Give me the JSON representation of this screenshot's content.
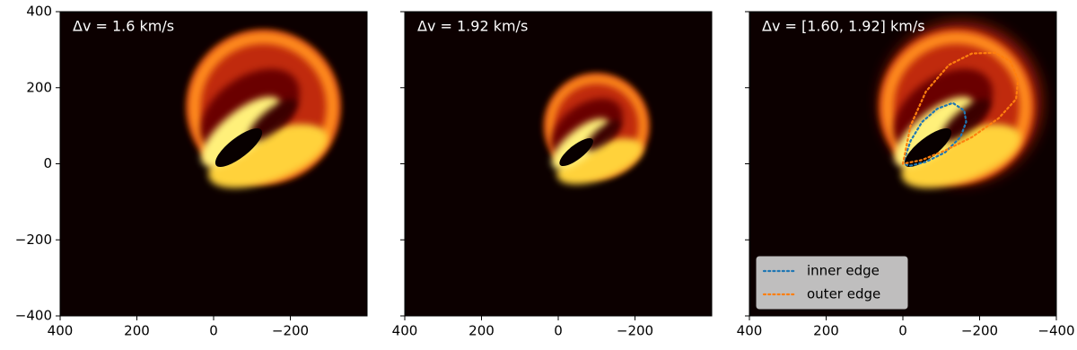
{
  "chart_data": [
    {
      "type": "heatmap",
      "title": "Δv = 1.6 km/s",
      "xlim": [
        400,
        -400
      ],
      "ylim": [
        -400,
        400
      ],
      "xticks": [
        400,
        200,
        0,
        {
          "value": -200,
          "label": "−200"
        }
      ],
      "yticks": [
        {
          "value": -400,
          "label": "−400"
        },
        {
          "value": -200,
          "label": "−200"
        },
        0,
        200,
        400
      ]
    },
    {
      "type": "heatmap",
      "title": "Δv = 1.92 km/s",
      "xlim": [
        400,
        -400
      ],
      "ylim": [
        -400,
        400
      ],
      "xticks": [
        400,
        200,
        0,
        {
          "value": -200,
          "label": "−200"
        }
      ]
    },
    {
      "type": "heatmap",
      "title": "Δv = [1.60, 1.92] km/s",
      "xlim": [
        400,
        -400
      ],
      "ylim": [
        -400,
        400
      ],
      "xticks": [
        400,
        200,
        0,
        {
          "value": -200,
          "label": "−200"
        },
        {
          "value": -400,
          "label": "−400"
        }
      ],
      "legend": "lower left",
      "series": [
        {
          "name": "inner edge",
          "color": "#1f77b4",
          "x": [
            0,
            -20,
            -50,
            -90,
            -130,
            -160,
            -165,
            -150,
            -110,
            -60,
            -20,
            0
          ],
          "y": [
            0,
            60,
            110,
            145,
            160,
            140,
            110,
            70,
            30,
            5,
            -5,
            0
          ]
        },
        {
          "name": "outer edge",
          "color": "#ff7f0e",
          "x": [
            0,
            -20,
            -60,
            -120,
            -180,
            -240,
            -280,
            -300,
            -295,
            -250,
            -180,
            -110,
            -50,
            0
          ],
          "y": [
            0,
            100,
            190,
            260,
            290,
            292,
            270,
            220,
            170,
            120,
            70,
            35,
            10,
            0
          ]
        }
      ]
    }
  ]
}
